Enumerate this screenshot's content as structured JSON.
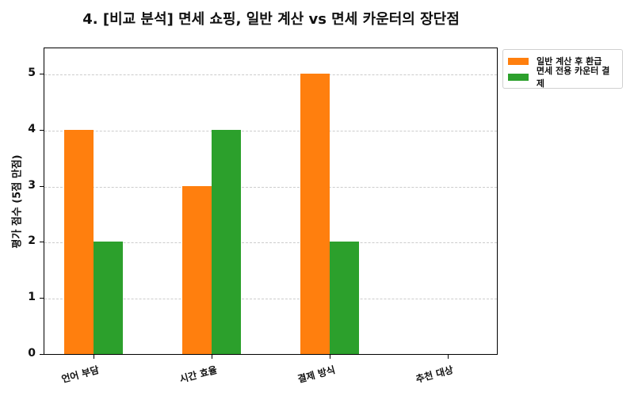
{
  "chart_data": {
    "type": "bar",
    "title": "4. [비교 분석] 면세 쇼핑, 일반 계산 vs 면세 카운터의 장단점",
    "xlabel": "",
    "ylabel": "평가 점수 (5점 만점)",
    "ylim": [
      0,
      5.5
    ],
    "yticks": [
      0,
      1,
      2,
      3,
      4,
      5
    ],
    "grid": true,
    "legend_position": "outside upper right",
    "categories": [
      "언어 부담",
      "시간 효율",
      "결제 방식",
      "추천 대상"
    ],
    "series": [
      {
        "name": "일반 계산 후 환급",
        "color": "#ff7f0e",
        "values": [
          4,
          3,
          5,
          0
        ]
      },
      {
        "name": "면세 전용 카운터 결제",
        "color": "#2ca02c",
        "values": [
          2,
          4,
          2,
          0
        ]
      }
    ]
  },
  "labels": {
    "title": "4. [비교 분석] 면세 쇼핑, 일반 계산 vs 면세 카운터의 장단점",
    "ylabel": "평가 점수 (5점 만점)",
    "yticks": [
      "0",
      "1",
      "2",
      "3",
      "4",
      "5"
    ],
    "categories": [
      "언어 부담",
      "시간 효율",
      "결제 방식",
      "추천 대상"
    ],
    "legend": [
      "일반 계산 후 환급",
      "면세 전용 카운터 결제"
    ]
  }
}
